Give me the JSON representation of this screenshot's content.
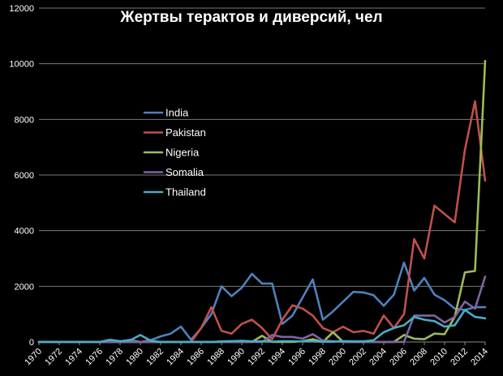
{
  "chart_data": {
    "type": "line",
    "title": "Жертвы терактов и диверсий, чел",
    "xlabel": "",
    "ylabel": "",
    "ylim": [
      0,
      12000
    ],
    "yticks": [
      0,
      2000,
      4000,
      6000,
      8000,
      10000,
      12000
    ],
    "ytick_labels": [
      "0",
      "2000",
      "4000",
      "6000",
      "8000",
      "10000",
      "12000"
    ],
    "x": [
      1970,
      1971,
      1972,
      1973,
      1974,
      1975,
      1976,
      1977,
      1978,
      1979,
      1980,
      1981,
      1982,
      1983,
      1984,
      1985,
      1986,
      1987,
      1988,
      1989,
      1990,
      1991,
      1992,
      1993,
      1994,
      1995,
      1996,
      1997,
      1998,
      1999,
      2000,
      2001,
      2002,
      2003,
      2004,
      2005,
      2006,
      2007,
      2008,
      2009,
      2010,
      2011,
      2012,
      2013,
      2014
    ],
    "xtick_labels": [
      "1970",
      "1972",
      "1974",
      "1976",
      "1978",
      "1980",
      "1982",
      "1984",
      "1986",
      "1988",
      "1990",
      "1992",
      "1994",
      "1996",
      "1998",
      "2000",
      "2002",
      "2004",
      "2006",
      "2008",
      "2010",
      "2012",
      "2014"
    ],
    "grid": true,
    "legend_position": "center-left",
    "series": [
      {
        "name": "India",
        "color": "#4f81bd",
        "values": [
          0,
          0,
          0,
          0,
          0,
          0,
          0,
          10,
          20,
          80,
          0,
          60,
          200,
          300,
          550,
          80,
          500,
          1000,
          2000,
          1650,
          1950,
          2450,
          2100,
          2100,
          650,
          950,
          1600,
          2250,
          800,
          1100,
          1450,
          1800,
          1780,
          1680,
          1300,
          1700,
          2850,
          1850,
          2300,
          1700,
          1500,
          1200,
          1150,
          1250,
          1250
        ]
      },
      {
        "name": "Pakistan",
        "color": "#c0504d",
        "values": [
          0,
          0,
          0,
          0,
          0,
          0,
          0,
          0,
          0,
          0,
          0,
          0,
          0,
          0,
          0,
          0,
          500,
          1250,
          400,
          300,
          650,
          800,
          500,
          100,
          800,
          1320,
          1200,
          950,
          500,
          350,
          550,
          350,
          400,
          300,
          950,
          500,
          1000,
          3700,
          3000,
          4900,
          4600,
          4300,
          6900,
          8650,
          5800
        ]
      },
      {
        "name": "Nigeria",
        "color": "#9bbb59",
        "values": [
          0,
          0,
          0,
          0,
          0,
          0,
          0,
          0,
          0,
          0,
          0,
          0,
          0,
          0,
          0,
          0,
          0,
          0,
          0,
          0,
          0,
          0,
          220,
          0,
          0,
          0,
          30,
          100,
          0,
          350,
          0,
          0,
          0,
          0,
          0,
          0,
          250,
          120,
          100,
          300,
          280,
          900,
          2500,
          2550,
          10100
        ]
      },
      {
        "name": "Somalia",
        "color": "#8064a2",
        "values": [
          0,
          0,
          0,
          0,
          0,
          0,
          0,
          0,
          0,
          0,
          0,
          0,
          0,
          0,
          0,
          0,
          0,
          0,
          0,
          0,
          0,
          0,
          0,
          250,
          180,
          180,
          120,
          280,
          50,
          30,
          0,
          0,
          0,
          0,
          0,
          0,
          0,
          950,
          950,
          950,
          700,
          900,
          1450,
          1200,
          2350
        ]
      },
      {
        "name": "Thailand",
        "color": "#4bacc6",
        "values": [
          0,
          0,
          0,
          0,
          0,
          0,
          0,
          80,
          30,
          60,
          250,
          50,
          0,
          0,
          0,
          0,
          0,
          0,
          20,
          30,
          40,
          20,
          20,
          10,
          30,
          30,
          20,
          20,
          10,
          10,
          30,
          20,
          20,
          60,
          350,
          500,
          600,
          900,
          800,
          750,
          550,
          600,
          1150,
          900,
          850
        ]
      }
    ]
  }
}
